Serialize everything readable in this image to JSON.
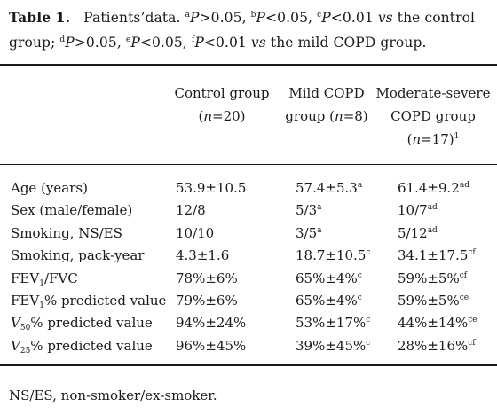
{
  "caption": {
    "table_label": "Table 1.",
    "text_intro": "Patients’data.",
    "sup_a": "a",
    "p_a": "P",
    "cmp_a": ">0.05, ",
    "sup_b": "b",
    "p_b": "P",
    "cmp_b": "<0.05, ",
    "sup_c": "c",
    "p_c": "P",
    "cmp_c": "<0.01 ",
    "vs1": "vs",
    "against1": " the control group; ",
    "sup_d": "d",
    "p_d": "P",
    "cmp_d": ">0.05, ",
    "sup_e": "e",
    "p_e": "P",
    "cmp_e": "<0.05, ",
    "sup_f": "f",
    "p_f": "P",
    "cmp_f": "<0.01 ",
    "vs2": "vs",
    "against2": " the mild COPD group."
  },
  "columns": {
    "control": {
      "line1": "Control group",
      "n_open": "(",
      "n_var": "n",
      "n_val": "=20)"
    },
    "mild": {
      "line1": "Mild COPD",
      "line2a": "group (",
      "n_var": "n",
      "n_val": "=8)"
    },
    "moderate": {
      "line1": "Moderate-severe",
      "line2": "COPD group",
      "n_open": "(",
      "n_var": "n",
      "n_val": "=17)",
      "n_sup": "1"
    }
  },
  "rows": [
    {
      "label": "Age (years)",
      "c1": "53.9±10.5",
      "c2": "57.4±5.3",
      "c2_sup": "a",
      "c3": "61.4±9.2",
      "c3_sup": "ad"
    },
    {
      "label": "Sex (male/female)",
      "c1": "12/8",
      "c2": "5/3",
      "c2_sup": "a",
      "c3": "10/7",
      "c3_sup": "ad"
    },
    {
      "label": "Smoking, NS/ES",
      "c1": "10/10",
      "c2": "3/5",
      "c2_sup": "a",
      "c3": "5/12",
      "c3_sup": "ad"
    },
    {
      "label": "Smoking, pack-year",
      "c1": "4.3±1.6",
      "c2": "18.7±10.5",
      "c2_sup": "c",
      "c3": "34.1±17.5",
      "c3_sup": "cf"
    },
    {
      "label_a": "FEV",
      "label_sub": "1",
      "label_b": "/FVC",
      "c1": "78%±6%",
      "c2": "65%±4%",
      "c2_sup": "c",
      "c3": "59%±5%",
      "c3_sup": "cf"
    },
    {
      "label_a": "FEV",
      "label_sub": "1",
      "label_b": "% predicted value",
      "c1": "79%±6%",
      "c2": "65%±4%",
      "c2_sup": "c",
      "c3": "59%±5%",
      "c3_sup": "ce"
    },
    {
      "label_a": "V",
      "label_sub": "50",
      "label_b": "% predicted value",
      "c1": "94%±24%",
      "c2": "53%±17%",
      "c2_sup": "c",
      "c3": "44%±14%",
      "c3_sup": "ce"
    },
    {
      "label_a": "V",
      "label_sub": "25",
      "label_b": "% predicted value",
      "c1": "96%±45%",
      "c2": "39%±45%",
      "c2_sup": "c",
      "c3": "28%±16%",
      "c3_sup": "cf"
    }
  ],
  "footnote": "NS/ES, non-smoker/ex-smoker."
}
